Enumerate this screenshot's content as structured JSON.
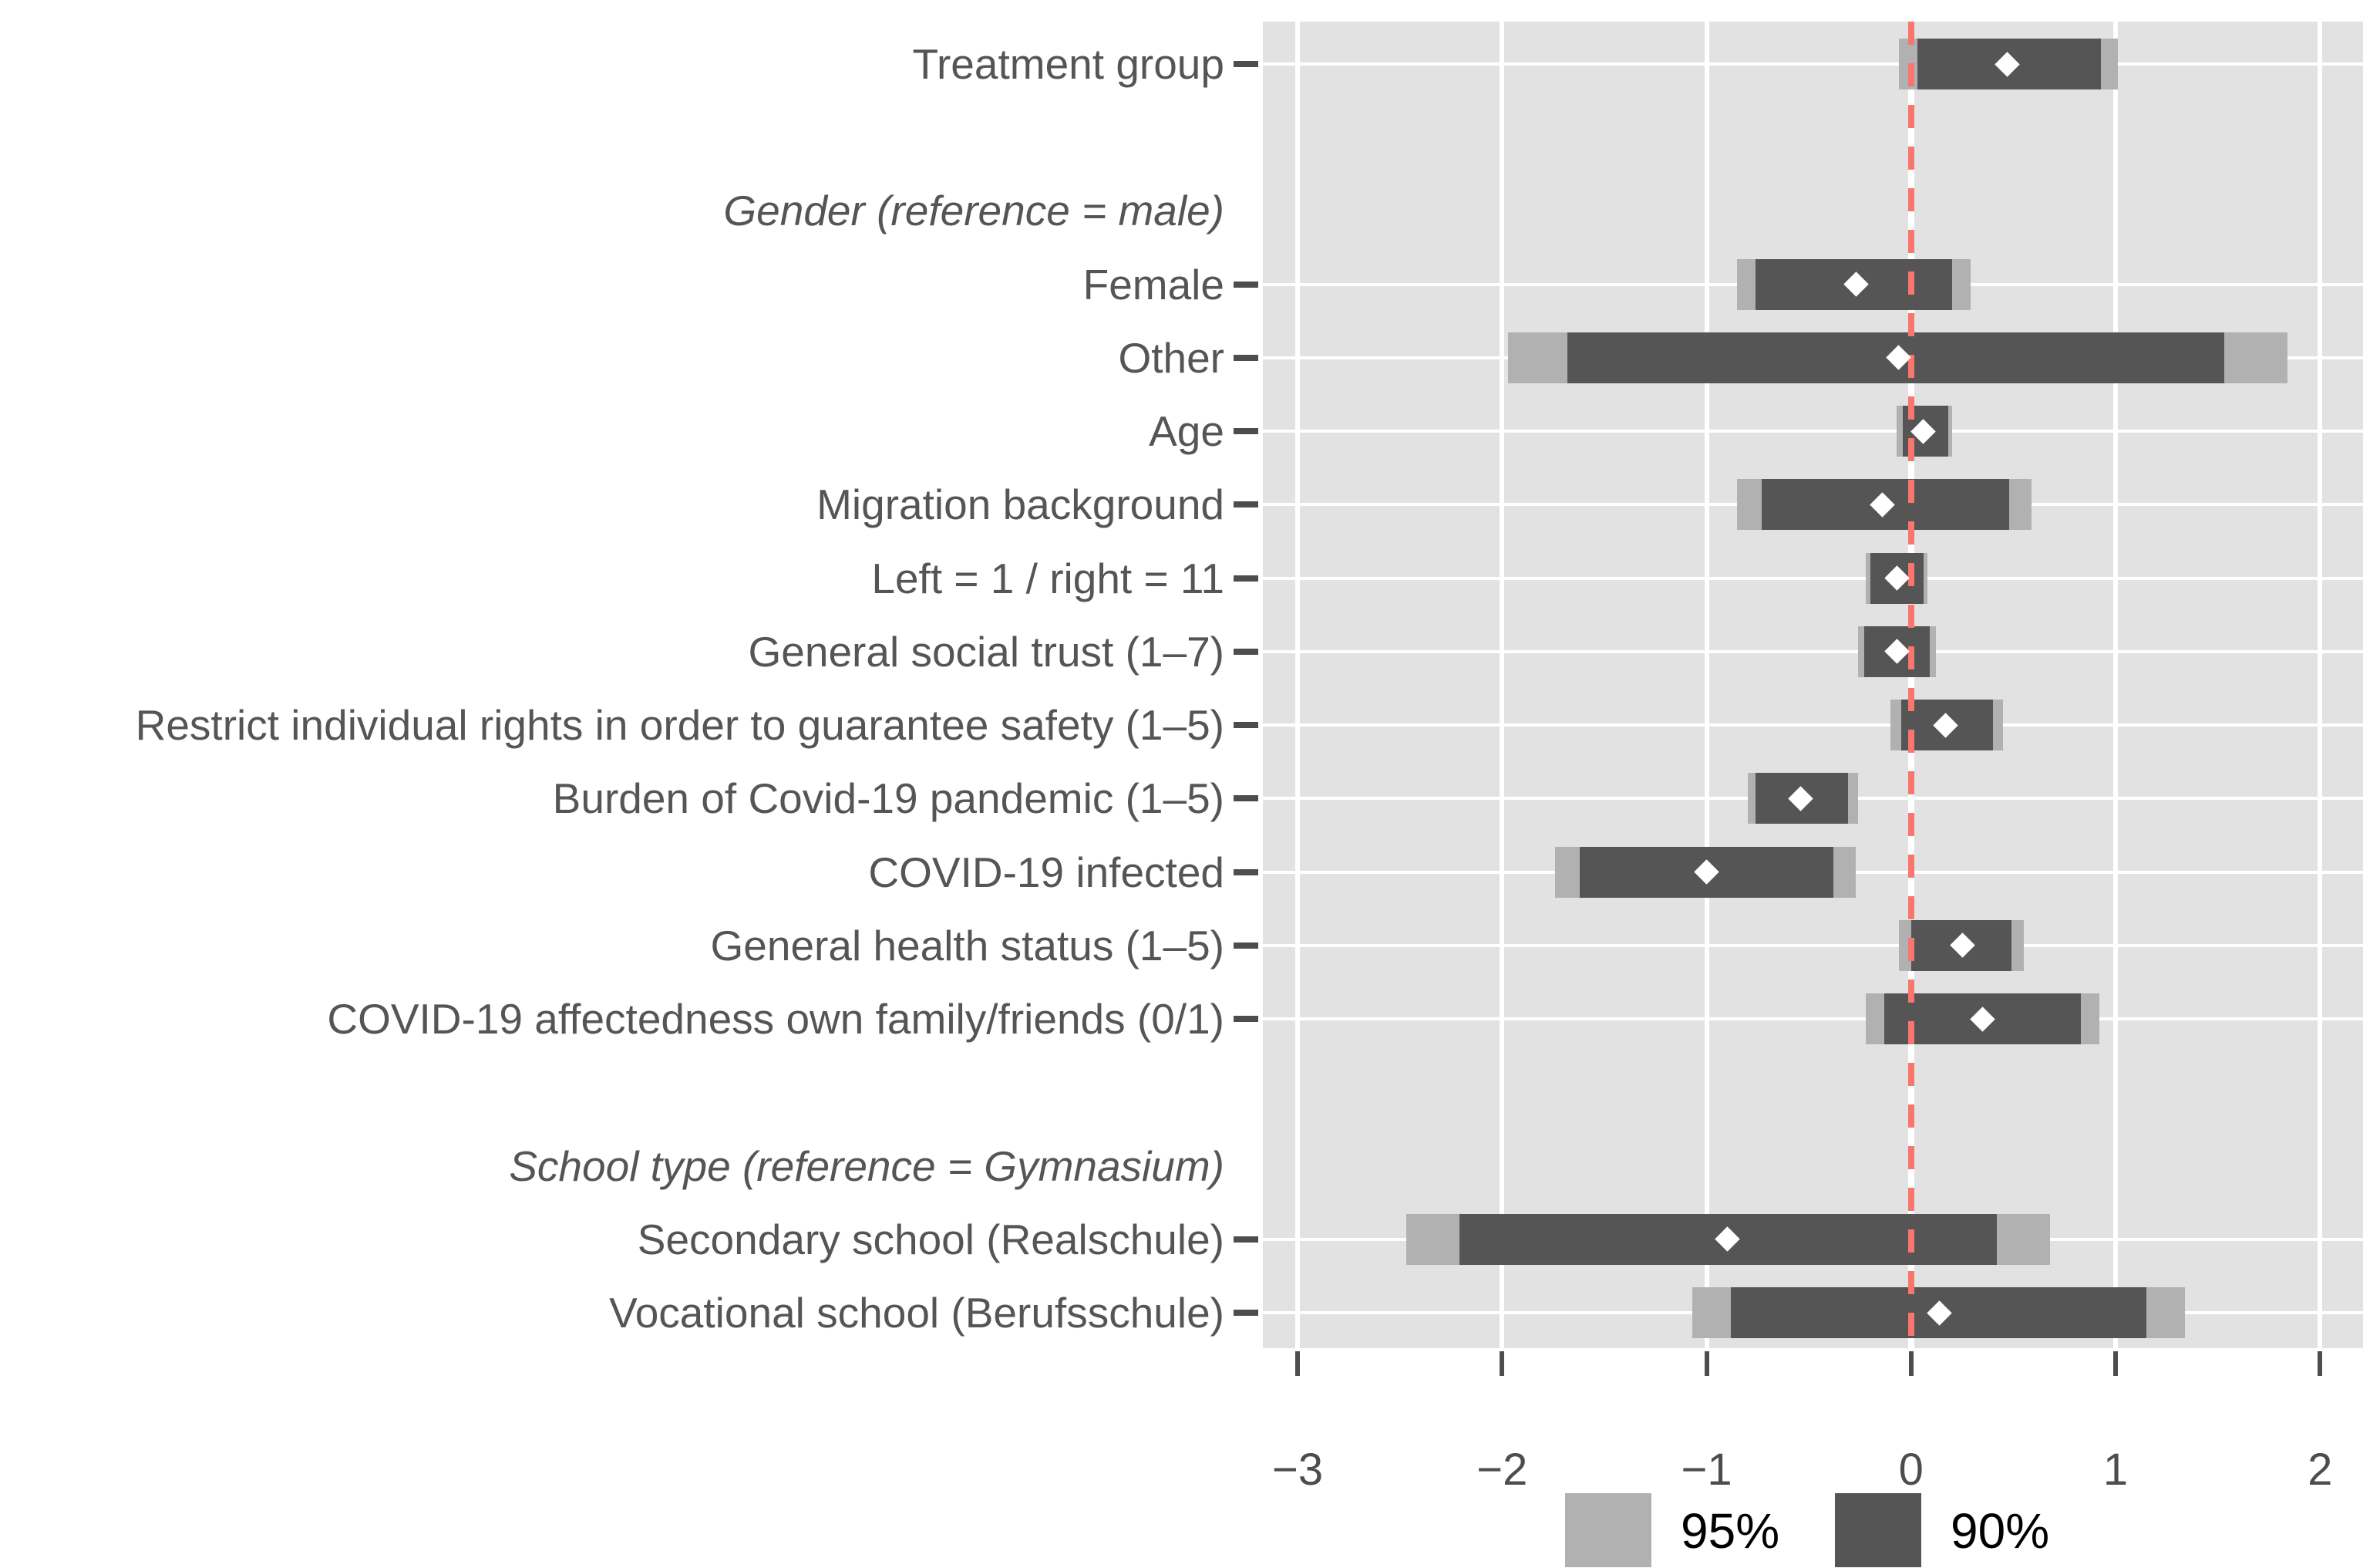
{
  "chart_data": {
    "type": "scatter",
    "variant": "coefficient-forest-plot",
    "orientation": "horizontal",
    "title": "",
    "xlabel": "",
    "ylabel": "",
    "x_axis": {
      "tick_values": [
        -3,
        -2,
        -1,
        0,
        1,
        2
      ],
      "tick_labels": [
        "−3",
        "−2",
        "−1",
        "0",
        "1",
        "2"
      ],
      "range": [
        -3.17,
        2.21
      ],
      "zero_reference_line": 0,
      "grid": true
    },
    "rows": [
      {
        "kind": "coef",
        "label": "Treatment group",
        "estimate": 0.47,
        "ci90": [
          0.03,
          0.93
        ],
        "ci95": [
          -0.06,
          1.01
        ]
      },
      {
        "kind": "spacer",
        "label": ""
      },
      {
        "kind": "header",
        "label": "Gender (reference = male)"
      },
      {
        "kind": "coef",
        "label": "Female",
        "estimate": -0.27,
        "ci90": [
          -0.76,
          0.2
        ],
        "ci95": [
          -0.85,
          0.29
        ]
      },
      {
        "kind": "coef",
        "label": "Other",
        "estimate": -0.06,
        "ci90": [
          -1.68,
          1.53
        ],
        "ci95": [
          -1.97,
          1.84
        ]
      },
      {
        "kind": "coef",
        "label": "Age",
        "estimate": 0.06,
        "ci90": [
          -0.04,
          0.18
        ],
        "ci95": [
          -0.07,
          0.2
        ]
      },
      {
        "kind": "coef",
        "label": "Migration background",
        "estimate": -0.14,
        "ci90": [
          -0.73,
          0.48
        ],
        "ci95": [
          -0.85,
          0.59
        ]
      },
      {
        "kind": "coef",
        "label": "Left = 1 / right = 11",
        "estimate": -0.07,
        "ci90": [
          -0.2,
          0.06
        ],
        "ci95": [
          -0.22,
          0.08
        ]
      },
      {
        "kind": "coef",
        "label": "General social trust (1–7)",
        "estimate": -0.07,
        "ci90": [
          -0.23,
          0.09
        ],
        "ci95": [
          -0.26,
          0.12
        ]
      },
      {
        "kind": "coef",
        "label": "Restrict individual rights in order to guarantee safety (1–5)",
        "estimate": 0.17,
        "ci90": [
          -0.05,
          0.4
        ],
        "ci95": [
          -0.1,
          0.45
        ]
      },
      {
        "kind": "coef",
        "label": "Burden of Covid-19 pandemic (1–5)",
        "estimate": -0.54,
        "ci90": [
          -0.76,
          -0.31
        ],
        "ci95": [
          -0.8,
          -0.26
        ]
      },
      {
        "kind": "coef",
        "label": "COVID-19 infected",
        "estimate": -1.0,
        "ci90": [
          -1.62,
          -0.38
        ],
        "ci95": [
          -1.74,
          -0.27
        ]
      },
      {
        "kind": "coef",
        "label": "General health status (1–5)",
        "estimate": 0.25,
        "ci90": [
          0.0,
          0.49
        ],
        "ci95": [
          -0.06,
          0.55
        ]
      },
      {
        "kind": "coef",
        "label": "COVID-19 affectedness own family/friends (0/1)",
        "estimate": 0.35,
        "ci90": [
          -0.13,
          0.83
        ],
        "ci95": [
          -0.22,
          0.92
        ]
      },
      {
        "kind": "spacer",
        "label": ""
      },
      {
        "kind": "header",
        "label": "School type (reference = Gymnasium)"
      },
      {
        "kind": "coef",
        "label": "Secondary school (Realschule)",
        "estimate": -0.9,
        "ci90": [
          -2.21,
          0.42
        ],
        "ci95": [
          -2.47,
          0.68
        ]
      },
      {
        "kind": "coef",
        "label": "Vocational school (Berufsschule)",
        "estimate": 0.14,
        "ci90": [
          -0.88,
          1.15
        ],
        "ci95": [
          -1.07,
          1.34
        ]
      }
    ],
    "legend": {
      "position": "bottom-center",
      "items": [
        {
          "label": "95%",
          "color": "#b1b1b1"
        },
        {
          "label": "90%",
          "color": "#555555"
        }
      ]
    },
    "colors": {
      "page_background": "#ffffff",
      "panel_background": "#e2e2e2",
      "gridline": "#ffffff",
      "ci95_bar": "#b1b1b1",
      "ci90_bar": "#555555",
      "estimate_marker": "#ffffff",
      "zero_line": "#f8766d",
      "axis_text": "#4d4d4d",
      "category_text": "#555555",
      "legend_text": "#000000",
      "tick_mark": "#4d4d4d"
    }
  }
}
